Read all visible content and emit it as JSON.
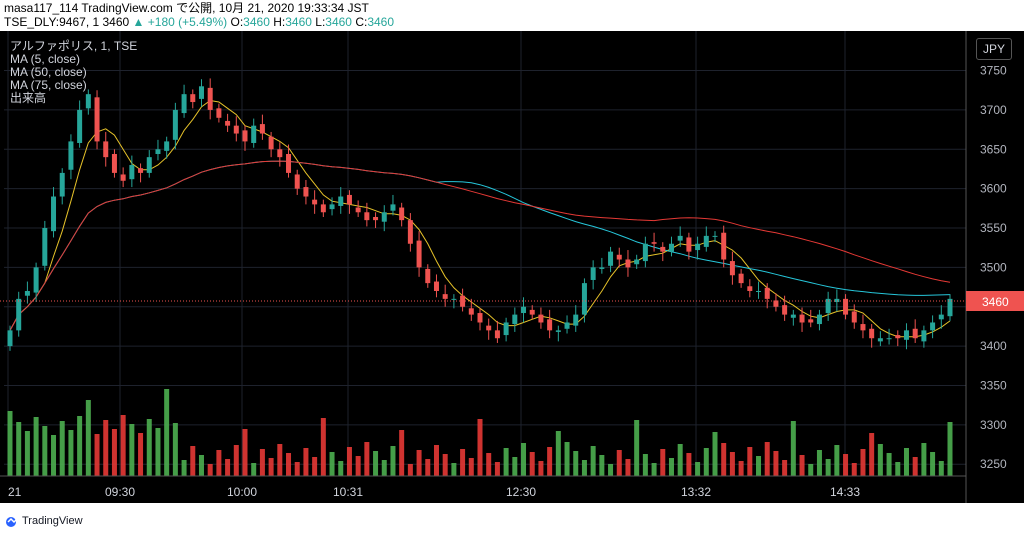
{
  "header": {
    "line1": "masa117_114 TradingView.com で公開, 10月 21, 2020 19:33:34 JST",
    "symbol_info": "TSE_DLY:9467, 1 3460",
    "change": "▲ +180 (+5.49%)",
    "o_label": "O:",
    "o_value": "3460",
    "h_label": "H:",
    "h_value": "3460",
    "l_label": "L:",
    "l_value": "3460",
    "c_label": "C:",
    "c_value": "3460"
  },
  "legend": {
    "symbol": "アルファポリス, 1, TSE",
    "ma5": "MA (5, close)",
    "ma50": "MA (50, close)",
    "ma75": "MA (75, close)",
    "volume": "出来高"
  },
  "currency": "JPY",
  "last_price_label": "3460",
  "footer": {
    "brand": "TradingView"
  },
  "colors": {
    "up": "#26a69a",
    "down": "#ef5350",
    "vol_up": "#4caf50",
    "vol_down": "#e53935",
    "ma5": "#e6c229",
    "ma50": "#26c6da",
    "ma75": "#e53935",
    "background": "#000000",
    "grid": "#1e222d"
  },
  "chart_data": {
    "type": "candlestick",
    "y_axis": {
      "ticks": [
        3250,
        3300,
        3350,
        3400,
        3450,
        3500,
        3550,
        3600,
        3650,
        3700,
        3750
      ],
      "range": [
        3235,
        3785
      ]
    },
    "x_axis": {
      "ticks": [
        "21",
        "09:30",
        "10:00",
        "10:31",
        "12:30",
        "13:32",
        "14:33"
      ]
    },
    "closes": [
      3420,
      3460,
      3470,
      3500,
      3550,
      3590,
      3620,
      3660,
      3700,
      3720,
      3660,
      3640,
      3620,
      3610,
      3630,
      3620,
      3640,
      3650,
      3660,
      3700,
      3720,
      3710,
      3730,
      3700,
      3690,
      3680,
      3670,
      3660,
      3680,
      3670,
      3650,
      3640,
      3620,
      3600,
      3590,
      3580,
      3570,
      3580,
      3590,
      3580,
      3570,
      3560,
      3560,
      3570,
      3580,
      3560,
      3530,
      3500,
      3480,
      3470,
      3460,
      3460,
      3450,
      3440,
      3430,
      3420,
      3410,
      3430,
      3440,
      3450,
      3440,
      3430,
      3420,
      3420,
      3430,
      3440,
      3480,
      3500,
      3500,
      3520,
      3510,
      3500,
      3510,
      3530,
      3530,
      3520,
      3530,
      3540,
      3520,
      3530,
      3540,
      3540,
      3510,
      3490,
      3480,
      3470,
      3470,
      3460,
      3450,
      3440,
      3440,
      3430,
      3430,
      3440,
      3460,
      3460,
      3440,
      3430,
      3420,
      3410,
      3410,
      3410,
      3410,
      3420,
      3410,
      3420,
      3430,
      3440,
      3460
    ]
  }
}
